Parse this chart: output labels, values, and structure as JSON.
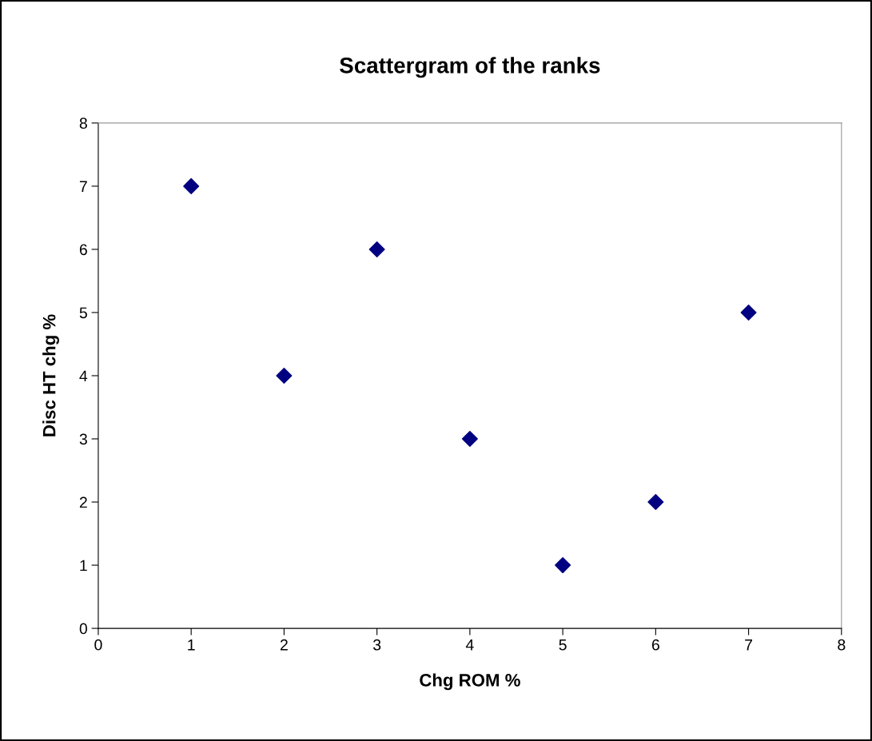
{
  "chart_data": {
    "type": "scatter",
    "title": "Scattergram of the ranks",
    "xlabel": "Chg ROM %",
    "ylabel": "Disc HT chg %",
    "x": [
      1,
      2,
      3,
      4,
      5,
      6,
      7
    ],
    "series": [
      {
        "color": "#000080",
        "values": [
          7,
          4,
          6,
          3,
          1,
          2,
          5
        ]
      }
    ],
    "xlim": [
      0,
      8
    ],
    "ylim": [
      0,
      8
    ],
    "xticks": [
      0,
      1,
      2,
      3,
      4,
      5,
      6,
      7,
      8
    ],
    "yticks": [
      0,
      1,
      2,
      3,
      4,
      5,
      6,
      7,
      8
    ],
    "marker": "diamond",
    "grid": false,
    "legend": false
  }
}
